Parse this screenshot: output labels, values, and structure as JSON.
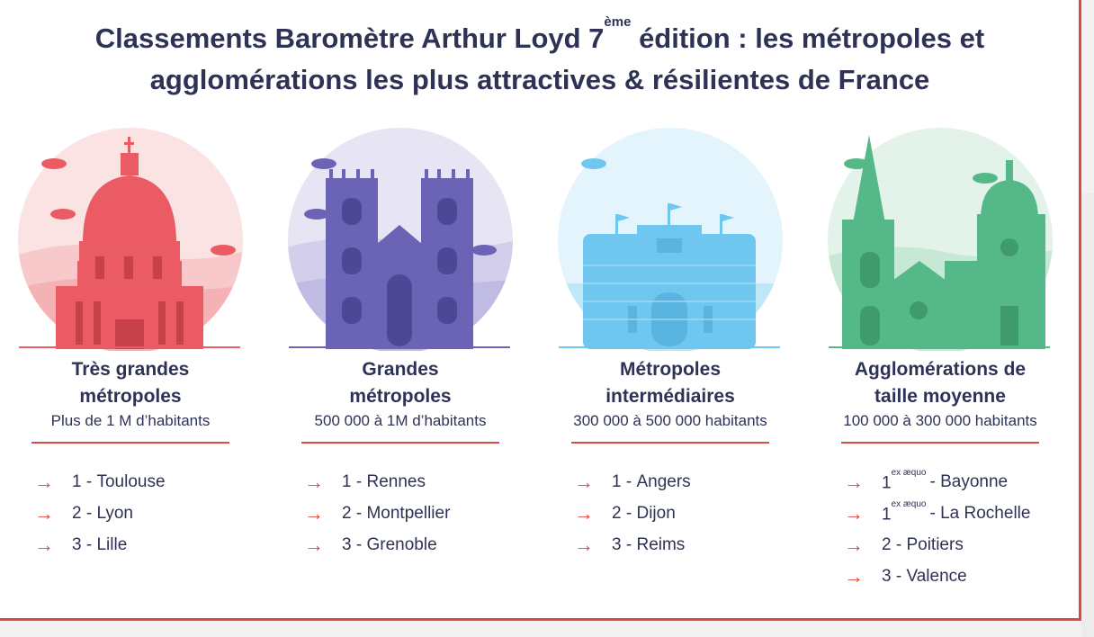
{
  "title": {
    "line1_pre": "Classements Baromètre Arthur Loyd 7",
    "line1_sup": "ème",
    "line1_post": " édition : les métropoles et",
    "line2": "agglomérations les plus attractives & résilientes de France"
  },
  "colors": {
    "accent": "#d94a43",
    "text": "#2e3355",
    "red_illustration": "#ea5b63",
    "purple_illustration": "#6b63b5",
    "blue_illustration": "#6fc7ef",
    "green_illustration": "#55b889"
  },
  "categories": [
    {
      "name_line1": "Très grandes",
      "name_line2": "métropoles",
      "subtitle": "Plus de 1 M d’habitants",
      "icon": "dome-building-icon",
      "rankings": [
        {
          "rank": "1",
          "sup": "",
          "city": "Toulouse"
        },
        {
          "rank": "2",
          "sup": "",
          "city": "Lyon"
        },
        {
          "rank": "3",
          "sup": "",
          "city": "Lille"
        }
      ]
    },
    {
      "name_line1": "Grandes",
      "name_line2": "métropoles",
      "subtitle": "500 000 à 1M d’habitants",
      "icon": "cathedral-icon",
      "rankings": [
        {
          "rank": "1",
          "sup": "",
          "city": "Rennes"
        },
        {
          "rank": "2",
          "sup": "",
          "city": "Montpellier"
        },
        {
          "rank": "3",
          "sup": "",
          "city": "Grenoble"
        }
      ]
    },
    {
      "name_line1": "Métropoles",
      "name_line2": "intermédiaires",
      "subtitle": "300 000 à 500 000 habitants",
      "icon": "castle-icon",
      "rankings": [
        {
          "rank": "1",
          "sup": "",
          "city": "Angers"
        },
        {
          "rank": "2",
          "sup": "",
          "city": "Dijon"
        },
        {
          "rank": "3",
          "sup": "",
          "city": "Reims"
        }
      ]
    },
    {
      "name_line1": "Agglomérations de",
      "name_line2": "taille moyenne",
      "subtitle": "100 000 à 300 000 habitants",
      "icon": "church-spire-icon",
      "rankings": [
        {
          "rank": "1",
          "sup": "ex æquo",
          "city": "Bayonne"
        },
        {
          "rank": "1",
          "sup": "ex æquo",
          "city": "La Rochelle"
        },
        {
          "rank": "2",
          "sup": "",
          "city": "Poitiers"
        },
        {
          "rank": "3",
          "sup": "",
          "city": "Valence"
        }
      ]
    }
  ]
}
